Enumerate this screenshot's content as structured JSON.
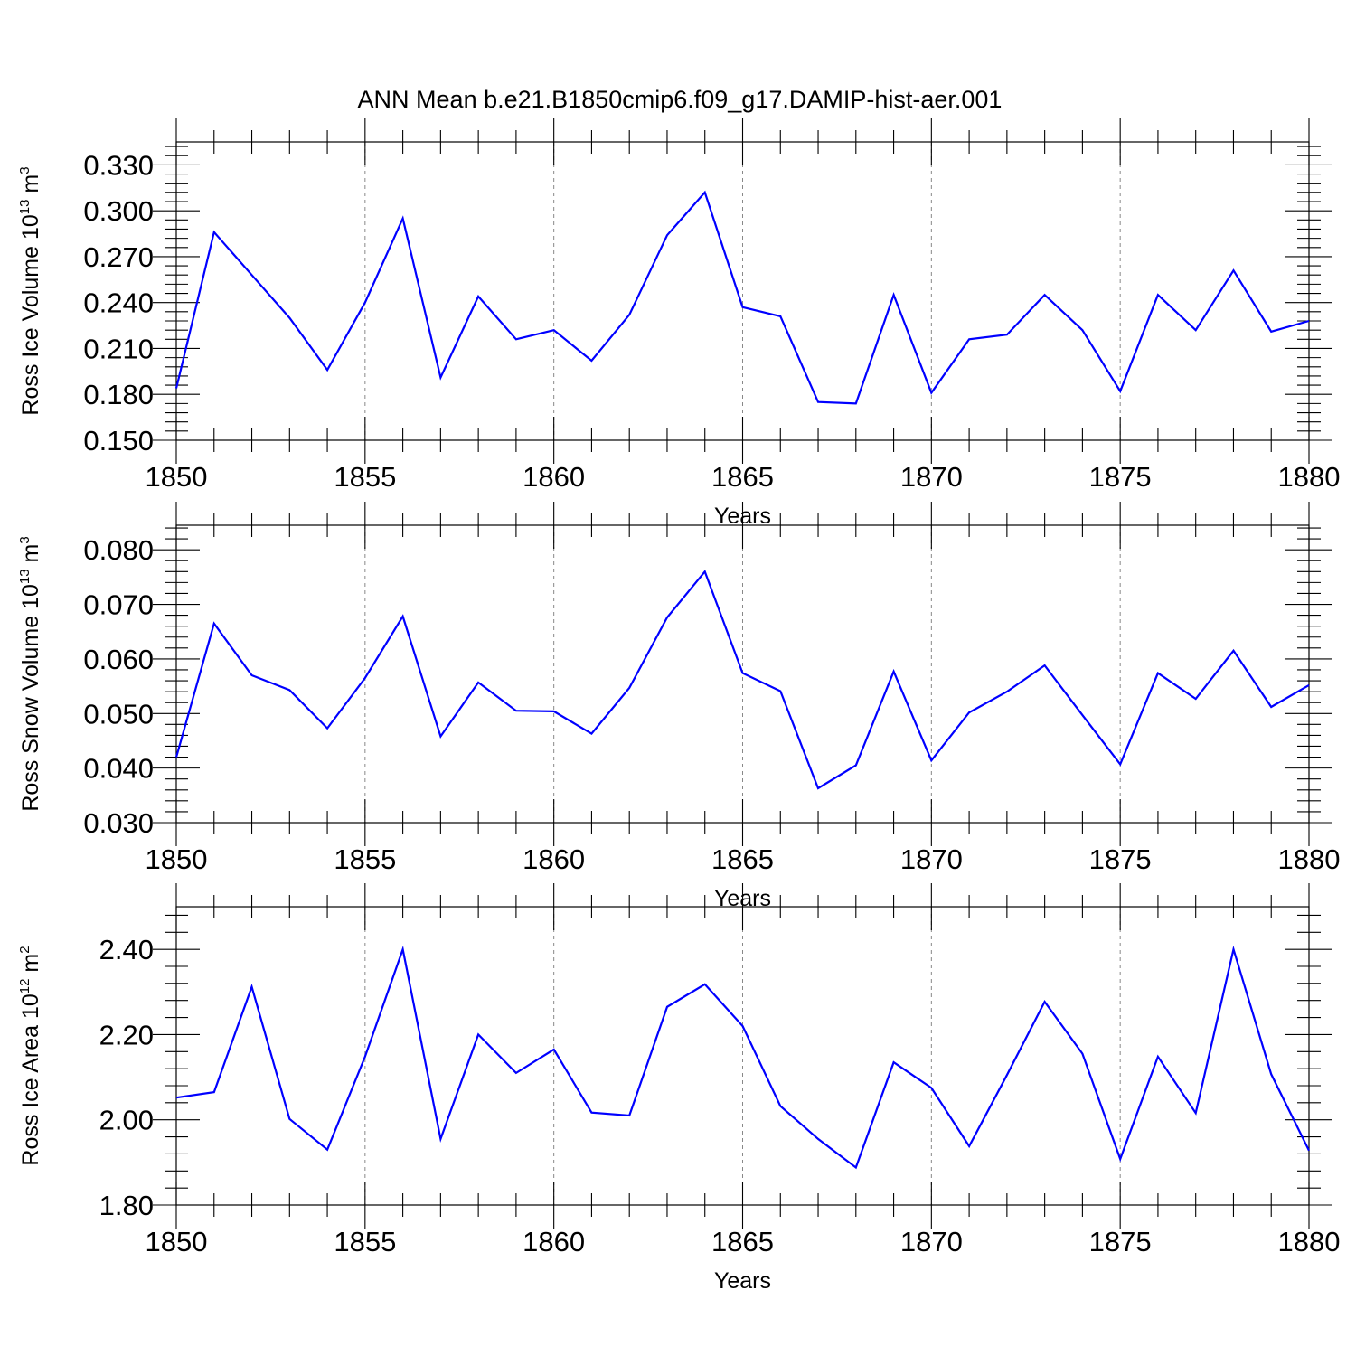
{
  "title": "ANN Mean b.e21.B1850cmip6.f09_g17.DAMIP-hist-aer.001",
  "colors": {
    "line": "#0000ff",
    "grid": "#888888",
    "axis": "#000000"
  },
  "chart_data": [
    {
      "type": "line",
      "ylabel": "Ross Ice Volume",
      "unit_base": "10",
      "unit_exp": "13",
      "unit_name": "m",
      "unit_name_exp": "3",
      "xlabel": "Years",
      "xlim": [
        1850,
        1880
      ],
      "ylim": [
        0.15,
        0.345
      ],
      "yticks": [
        0.15,
        0.18,
        0.21,
        0.24,
        0.27,
        0.3,
        0.33
      ],
      "ytick_labels": [
        "0.150",
        "0.180",
        "0.210",
        "0.240",
        "0.270",
        "0.300",
        "0.330"
      ],
      "yminor_step": 0.006,
      "xticks": [
        1850,
        1855,
        1860,
        1865,
        1870,
        1875,
        1880
      ],
      "xtick_labels": [
        "1850",
        "1855",
        "1860",
        "1865",
        "1870",
        "1875",
        "1880"
      ],
      "grid_x": [
        1855,
        1860,
        1865,
        1870,
        1875
      ],
      "x": [
        1850,
        1851,
        1852,
        1853,
        1854,
        1855,
        1856,
        1857,
        1858,
        1859,
        1860,
        1861,
        1862,
        1863,
        1864,
        1865,
        1866,
        1867,
        1868,
        1869,
        1870,
        1871,
        1872,
        1873,
        1874,
        1875,
        1876,
        1877,
        1878,
        1879,
        1880
      ],
      "values": [
        0.184,
        0.286,
        0.258,
        0.23,
        0.196,
        0.24,
        0.295,
        0.191,
        0.244,
        0.216,
        0.222,
        0.202,
        0.232,
        0.284,
        0.312,
        0.237,
        0.231,
        0.175,
        0.174,
        0.245,
        0.181,
        0.216,
        0.219,
        0.245,
        0.222,
        0.182,
        0.245,
        0.222,
        0.261,
        0.221,
        0.228
      ]
    },
    {
      "type": "line",
      "ylabel": "Ross Snow Volume",
      "unit_base": "10",
      "unit_exp": "13",
      "unit_name": "m",
      "unit_name_exp": "3",
      "xlabel": "Years",
      "xlim": [
        1850,
        1880
      ],
      "ylim": [
        0.03,
        0.0845
      ],
      "yticks": [
        0.03,
        0.04,
        0.05,
        0.06,
        0.07,
        0.08
      ],
      "ytick_labels": [
        "0.030",
        "0.040",
        "0.050",
        "0.060",
        "0.070",
        "0.080"
      ],
      "yminor_step": 0.002,
      "xticks": [
        1850,
        1855,
        1860,
        1865,
        1870,
        1875,
        1880
      ],
      "xtick_labels": [
        "1850",
        "1855",
        "1860",
        "1865",
        "1870",
        "1875",
        "1880"
      ],
      "grid_x": [
        1855,
        1860,
        1865,
        1870,
        1875
      ],
      "x": [
        1850,
        1851,
        1852,
        1853,
        1854,
        1855,
        1856,
        1857,
        1858,
        1859,
        1860,
        1861,
        1862,
        1863,
        1864,
        1865,
        1866,
        1867,
        1868,
        1869,
        1870,
        1871,
        1872,
        1873,
        1874,
        1875,
        1876,
        1877,
        1878,
        1879,
        1880
      ],
      "values": [
        0.042,
        0.0665,
        0.057,
        0.0543,
        0.0473,
        0.0565,
        0.0678,
        0.0458,
        0.0557,
        0.0505,
        0.0504,
        0.0463,
        0.0547,
        0.0676,
        0.076,
        0.0574,
        0.0541,
        0.0363,
        0.0405,
        0.0577,
        0.0414,
        0.0502,
        0.054,
        0.0588,
        0.0497,
        0.0407,
        0.0574,
        0.0527,
        0.0615,
        0.0512,
        0.0552
      ]
    },
    {
      "type": "line",
      "ylabel": "Ross Ice Area",
      "unit_base": "10",
      "unit_exp": "12",
      "unit_name": "m",
      "unit_name_exp": "2",
      "xlabel": "Years",
      "xlim": [
        1850,
        1880
      ],
      "ylim": [
        1.8,
        2.5
      ],
      "yticks": [
        1.8,
        2.0,
        2.2,
        2.4
      ],
      "ytick_labels": [
        "1.80",
        "2.00",
        "2.20",
        "2.40"
      ],
      "yminor_step": 0.04,
      "xticks": [
        1850,
        1855,
        1860,
        1865,
        1870,
        1875,
        1880
      ],
      "xtick_labels": [
        "1850",
        "1855",
        "1860",
        "1865",
        "1870",
        "1875",
        "1880"
      ],
      "grid_x": [
        1855,
        1860,
        1865,
        1870,
        1875
      ],
      "x": [
        1850,
        1851,
        1852,
        1853,
        1854,
        1855,
        1856,
        1857,
        1858,
        1859,
        1860,
        1861,
        1862,
        1863,
        1864,
        1865,
        1866,
        1867,
        1868,
        1869,
        1870,
        1871,
        1872,
        1873,
        1874,
        1875,
        1876,
        1877,
        1878,
        1879,
        1880
      ],
      "values": [
        2.052,
        2.065,
        2.312,
        2.002,
        1.93,
        2.148,
        2.4,
        1.955,
        2.2,
        2.11,
        2.165,
        2.017,
        2.01,
        2.265,
        2.318,
        2.22,
        2.032,
        1.955,
        1.888,
        2.135,
        2.075,
        1.938,
        2.105,
        2.277,
        2.155,
        1.908,
        2.148,
        2.016,
        2.4,
        2.107,
        1.928
      ]
    }
  ]
}
